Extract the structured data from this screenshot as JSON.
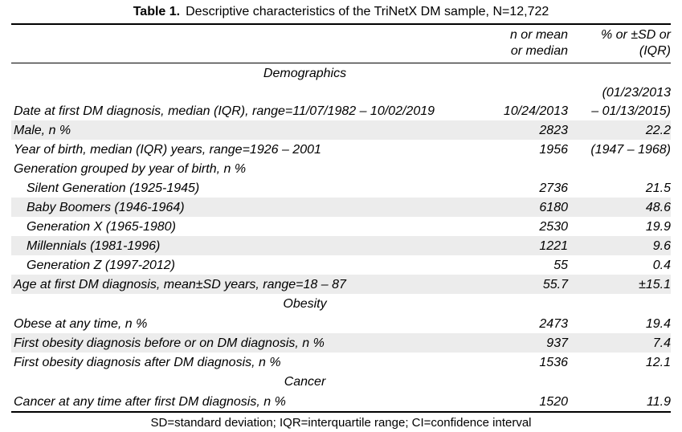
{
  "title": {
    "label": "Table 1.",
    "text": "Descriptive characteristics of the TriNetX DM sample, N=12,722"
  },
  "columns": {
    "value1_line1": "n or mean",
    "value1_line2": "or median",
    "value2_line1": "% or ±SD or",
    "value2_line2": "(IQR)"
  },
  "rows": [
    {
      "type": "section",
      "label": "Demographics"
    },
    {
      "type": "data",
      "label": "Date at first DM diagnosis, median (IQR), range=11/07/1982 – 10/02/2019",
      "value1": "10/24/2013",
      "value2": [
        "(01/23/2013",
        "– 01/13/2015)"
      ],
      "shaded": false,
      "indent": false,
      "tall": true
    },
    {
      "type": "data",
      "label": "Male, n %",
      "value1": "2823",
      "value2": "22.2",
      "shaded": true,
      "indent": false
    },
    {
      "type": "data",
      "label": "Year of birth, median (IQR) years, range=1926 – 2001",
      "value1": "1956",
      "value2": "(1947 – 1968)",
      "shaded": false,
      "indent": false
    },
    {
      "type": "data",
      "label": "Generation grouped by year of birth, n %",
      "value1": "",
      "value2": "",
      "shaded": false,
      "indent": false
    },
    {
      "type": "data",
      "label": "Silent Generation (1925-1945)",
      "value1": "2736",
      "value2": "21.5",
      "shaded": false,
      "indent": true
    },
    {
      "type": "data",
      "label": "Baby Boomers (1946-1964)",
      "value1": "6180",
      "value2": "48.6",
      "shaded": true,
      "indent": true
    },
    {
      "type": "data",
      "label": "Generation X (1965-1980)",
      "value1": "2530",
      "value2": "19.9",
      "shaded": false,
      "indent": true
    },
    {
      "type": "data",
      "label": "Millennials (1981-1996)",
      "value1": "1221",
      "value2": "9.6",
      "shaded": true,
      "indent": true
    },
    {
      "type": "data",
      "label": "Generation Z (1997-2012)",
      "value1": "55",
      "value2": "0.4",
      "shaded": false,
      "indent": true
    },
    {
      "type": "data",
      "label": "Age at first DM diagnosis, mean±SD years, range=18 – 87",
      "value1": "55.7",
      "value2": "±15.1",
      "shaded": true,
      "indent": false
    },
    {
      "type": "section",
      "label": "Obesity"
    },
    {
      "type": "data",
      "label": "Obese at any time, n %",
      "value1": "2473",
      "value2": "19.4",
      "shaded": false,
      "indent": false
    },
    {
      "type": "data",
      "label": "First obesity diagnosis before or on DM diagnosis, n %",
      "value1": "937",
      "value2": "7.4",
      "shaded": true,
      "indent": false
    },
    {
      "type": "data",
      "label": "First obesity diagnosis after DM diagnosis, n %",
      "value1": "1536",
      "value2": "12.1",
      "shaded": false,
      "indent": false
    },
    {
      "type": "section",
      "label": "Cancer"
    },
    {
      "type": "data",
      "label": "Cancer at any time after first DM diagnosis, n %",
      "value1": "1520",
      "value2": "11.9",
      "shaded": false,
      "indent": false
    }
  ],
  "footnote": "SD=standard deviation; IQR=interquartile range; CI=confidence interval"
}
